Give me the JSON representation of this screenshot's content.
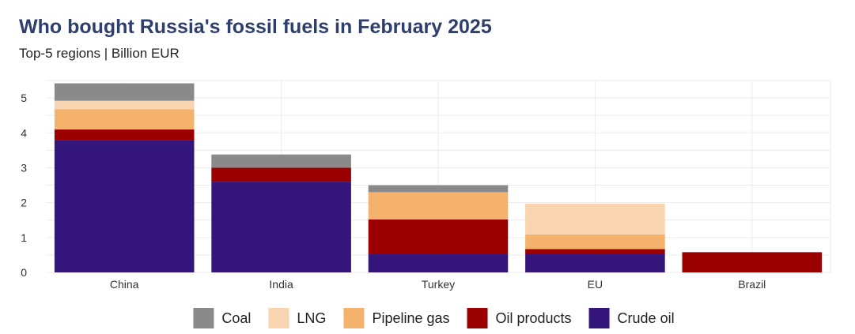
{
  "title": "Who bought Russia's fossil fuels in February 2025",
  "subtitle": "Top-5 regions | Billion EUR",
  "chart_data": {
    "type": "bar",
    "stacked": true,
    "title": "Who bought Russia's fossil fuels in February 2025",
    "subtitle": "Top-5 regions | Billion EUR",
    "xlabel": "",
    "ylabel": "",
    "categories": [
      "China",
      "India",
      "Turkey",
      "EU",
      "Brazil"
    ],
    "ylim": [
      0,
      5.5
    ],
    "yticks": [
      0,
      1,
      2,
      3,
      4,
      5
    ],
    "grid": true,
    "legend": "bottom",
    "series": [
      {
        "name": "Crude oil",
        "color": "#34167a",
        "values": [
          3.8,
          2.6,
          0.52,
          0.52,
          0
        ]
      },
      {
        "name": "Oil products",
        "color": "#9b0000",
        "values": [
          0.3,
          0.4,
          1.0,
          0.15,
          0.58
        ]
      },
      {
        "name": "Pipeline gas",
        "color": "#f4b26c",
        "values": [
          0.58,
          0,
          0.78,
          0.42,
          0
        ]
      },
      {
        "name": "LNG",
        "color": "#f9d4b0",
        "values": [
          0.24,
          0,
          0,
          0.88,
          0
        ]
      },
      {
        "name": "Coal",
        "color": "#8a8a8a",
        "values": [
          0.5,
          0.38,
          0.2,
          0,
          0
        ]
      }
    ],
    "legend_order": [
      "Coal",
      "LNG",
      "Pipeline gas",
      "Oil products",
      "Crude oil"
    ]
  }
}
